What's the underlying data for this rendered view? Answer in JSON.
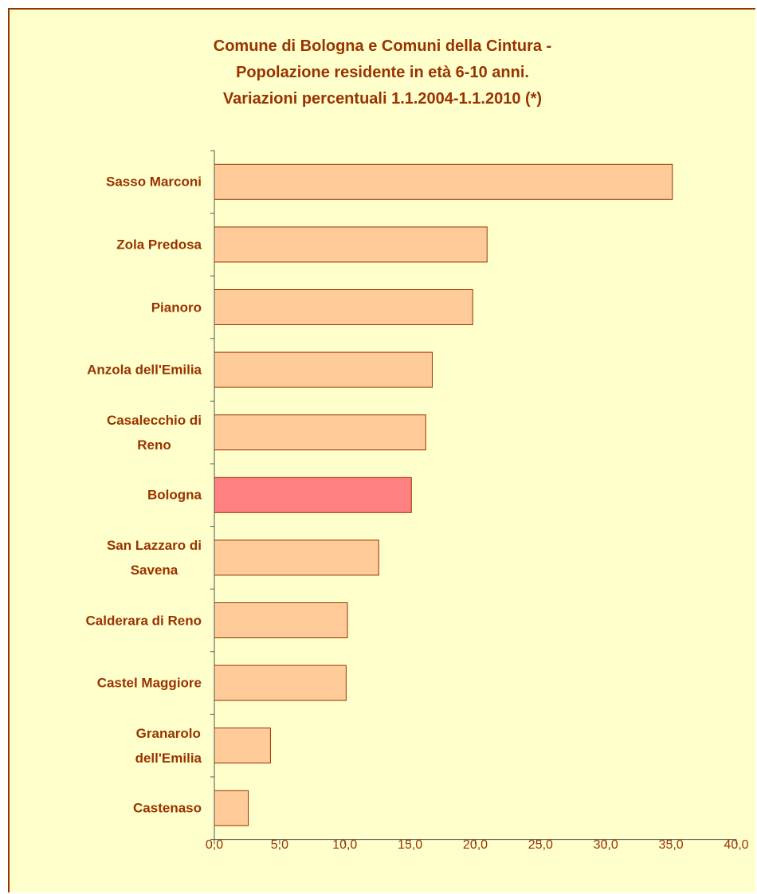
{
  "chart_data": {
    "type": "hbar",
    "title": "Comune di Bologna e Comuni della Cintura -\nPopolazione residente in età  6-10 anni.\nVariazioni percentuali 1.1.2004-1.1.2010 (*)",
    "categories": [
      "Sasso Marconi",
      "Zola Predosa",
      "Pianoro",
      "Anzola dell'Emilia",
      "Casalecchio di\nReno",
      "Bologna",
      "San Lazzaro di\nSavena",
      "Calderara di Reno",
      "Castel Maggiore",
      "Granarolo\ndell'Emilia",
      "Castenaso"
    ],
    "values": [
      35.1,
      20.9,
      19.8,
      16.7,
      16.2,
      15.1,
      12.6,
      10.2,
      10.1,
      4.3,
      2.6
    ],
    "colors": [
      "#ffcc99",
      "#ffcc99",
      "#ffcc99",
      "#ffcc99",
      "#ffcc99",
      "#ff8080",
      "#ffcc99",
      "#ffcc99",
      "#ffcc99",
      "#ffcc99",
      "#ffcc99"
    ],
    "xlim": [
      0,
      40
    ],
    "xticks": [
      {
        "value": 0,
        "label": "0,0"
      },
      {
        "value": 5,
        "label": "5,0"
      },
      {
        "value": 10,
        "label": "10,0"
      },
      {
        "value": 15,
        "label": "15,0"
      },
      {
        "value": 20,
        "label": "20,0"
      },
      {
        "value": 25,
        "label": "25,0"
      },
      {
        "value": 30,
        "label": "30,0"
      },
      {
        "value": 35,
        "label": "35,0"
      },
      {
        "value": 40,
        "label": "40,0"
      }
    ],
    "grid": false
  }
}
